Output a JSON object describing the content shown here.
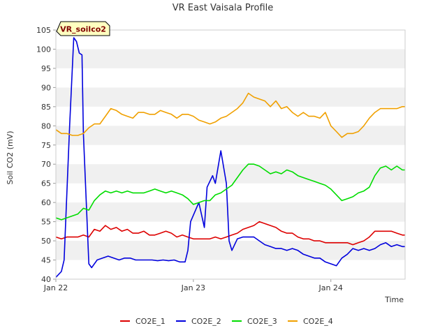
{
  "chart_data": {
    "type": "line",
    "title": "VR East Vaisala Profile",
    "xlabel": "Time",
    "ylabel": "Soil CO2 (mV)",
    "site_label": "VR_soilco2",
    "ylim": [
      40,
      105
    ],
    "yticks": [
      40,
      45,
      50,
      55,
      60,
      65,
      70,
      75,
      80,
      85,
      90,
      95,
      100,
      105
    ],
    "xlim": [
      0,
      2.54
    ],
    "xticks": [
      {
        "value": 0,
        "label": "Jan 22"
      },
      {
        "value": 1,
        "label": "Jan 23"
      },
      {
        "value": 2,
        "label": "Jan 24"
      }
    ],
    "series": [
      {
        "name": "CO2E_1",
        "color": "#dd0000",
        "points": [
          [
            0.0,
            51.0
          ],
          [
            0.04,
            50.5
          ],
          [
            0.08,
            51.0
          ],
          [
            0.12,
            51.0
          ],
          [
            0.16,
            51.0
          ],
          [
            0.2,
            51.5
          ],
          [
            0.24,
            51.0
          ],
          [
            0.28,
            53.0
          ],
          [
            0.32,
            52.5
          ],
          [
            0.36,
            54.0
          ],
          [
            0.4,
            53.0
          ],
          [
            0.44,
            53.5
          ],
          [
            0.48,
            52.5
          ],
          [
            0.52,
            53.0
          ],
          [
            0.56,
            52.0
          ],
          [
            0.6,
            52.0
          ],
          [
            0.64,
            52.5
          ],
          [
            0.68,
            51.5
          ],
          [
            0.72,
            51.5
          ],
          [
            0.76,
            52.0
          ],
          [
            0.8,
            52.5
          ],
          [
            0.84,
            52.0
          ],
          [
            0.88,
            51.0
          ],
          [
            0.92,
            51.5
          ],
          [
            0.96,
            51.0
          ],
          [
            1.0,
            50.5
          ],
          [
            1.04,
            50.5
          ],
          [
            1.08,
            50.5
          ],
          [
            1.12,
            50.5
          ],
          [
            1.16,
            51.0
          ],
          [
            1.2,
            50.5
          ],
          [
            1.24,
            51.0
          ],
          [
            1.28,
            51.5
          ],
          [
            1.32,
            52.0
          ],
          [
            1.36,
            53.0
          ],
          [
            1.4,
            53.5
          ],
          [
            1.44,
            54.0
          ],
          [
            1.48,
            55.0
          ],
          [
            1.52,
            54.5
          ],
          [
            1.56,
            54.0
          ],
          [
            1.6,
            53.5
          ],
          [
            1.64,
            52.5
          ],
          [
            1.68,
            52.0
          ],
          [
            1.72,
            52.0
          ],
          [
            1.76,
            51.0
          ],
          [
            1.8,
            50.5
          ],
          [
            1.84,
            50.5
          ],
          [
            1.88,
            50.0
          ],
          [
            1.92,
            50.0
          ],
          [
            1.96,
            49.5
          ],
          [
            2.0,
            49.5
          ],
          [
            2.04,
            49.5
          ],
          [
            2.08,
            49.5
          ],
          [
            2.12,
            49.5
          ],
          [
            2.16,
            49.0
          ],
          [
            2.2,
            49.5
          ],
          [
            2.24,
            50.0
          ],
          [
            2.28,
            51.0
          ],
          [
            2.32,
            52.5
          ],
          [
            2.36,
            52.5
          ],
          [
            2.4,
            52.5
          ],
          [
            2.44,
            52.5
          ],
          [
            2.48,
            52.0
          ],
          [
            2.52,
            51.5
          ],
          [
            2.54,
            51.5
          ]
        ]
      },
      {
        "name": "CO2E_2",
        "color": "#0000dd",
        "points": [
          [
            0.0,
            40.5
          ],
          [
            0.04,
            42.0
          ],
          [
            0.06,
            45.0
          ],
          [
            0.1,
            80.0
          ],
          [
            0.13,
            103.0
          ],
          [
            0.15,
            102.0
          ],
          [
            0.17,
            99.0
          ],
          [
            0.19,
            98.5
          ],
          [
            0.2,
            78.0
          ],
          [
            0.24,
            44.0
          ],
          [
            0.26,
            43.0
          ],
          [
            0.3,
            45.0
          ],
          [
            0.34,
            45.5
          ],
          [
            0.38,
            46.0
          ],
          [
            0.42,
            45.5
          ],
          [
            0.46,
            45.0
          ],
          [
            0.5,
            45.5
          ],
          [
            0.54,
            45.5
          ],
          [
            0.58,
            45.0
          ],
          [
            0.62,
            45.0
          ],
          [
            0.66,
            45.0
          ],
          [
            0.7,
            45.0
          ],
          [
            0.74,
            44.8
          ],
          [
            0.78,
            45.0
          ],
          [
            0.82,
            44.8
          ],
          [
            0.86,
            45.0
          ],
          [
            0.9,
            44.5
          ],
          [
            0.94,
            44.5
          ],
          [
            0.96,
            47.5
          ],
          [
            0.98,
            55.0
          ],
          [
            1.04,
            60.0
          ],
          [
            1.08,
            53.5
          ],
          [
            1.1,
            64.0
          ],
          [
            1.14,
            67.0
          ],
          [
            1.16,
            65.0
          ],
          [
            1.2,
            73.5
          ],
          [
            1.24,
            65.0
          ],
          [
            1.26,
            50.0
          ],
          [
            1.28,
            47.5
          ],
          [
            1.32,
            50.5
          ],
          [
            1.36,
            51.0
          ],
          [
            1.4,
            51.0
          ],
          [
            1.44,
            51.0
          ],
          [
            1.48,
            50.0
          ],
          [
            1.52,
            49.0
          ],
          [
            1.56,
            48.5
          ],
          [
            1.6,
            48.0
          ],
          [
            1.64,
            48.0
          ],
          [
            1.68,
            47.5
          ],
          [
            1.72,
            48.0
          ],
          [
            1.76,
            47.5
          ],
          [
            1.8,
            46.5
          ],
          [
            1.84,
            46.0
          ],
          [
            1.88,
            45.5
          ],
          [
            1.92,
            45.5
          ],
          [
            1.96,
            44.5
          ],
          [
            2.0,
            44.0
          ],
          [
            2.04,
            43.5
          ],
          [
            2.08,
            45.5
          ],
          [
            2.12,
            46.5
          ],
          [
            2.16,
            48.0
          ],
          [
            2.2,
            47.5
          ],
          [
            2.24,
            48.0
          ],
          [
            2.28,
            47.5
          ],
          [
            2.32,
            48.0
          ],
          [
            2.36,
            49.0
          ],
          [
            2.4,
            49.5
          ],
          [
            2.44,
            48.5
          ],
          [
            2.48,
            49.0
          ],
          [
            2.52,
            48.5
          ],
          [
            2.54,
            48.5
          ]
        ]
      },
      {
        "name": "CO2E_3",
        "color": "#00dd00",
        "points": [
          [
            0.0,
            56.0
          ],
          [
            0.04,
            55.5
          ],
          [
            0.08,
            56.0
          ],
          [
            0.12,
            56.5
          ],
          [
            0.16,
            57.0
          ],
          [
            0.2,
            58.5
          ],
          [
            0.24,
            58.0
          ],
          [
            0.28,
            60.5
          ],
          [
            0.32,
            62.0
          ],
          [
            0.36,
            63.0
          ],
          [
            0.4,
            62.5
          ],
          [
            0.44,
            63.0
          ],
          [
            0.48,
            62.5
          ],
          [
            0.52,
            63.0
          ],
          [
            0.56,
            62.5
          ],
          [
            0.6,
            62.5
          ],
          [
            0.64,
            62.5
          ],
          [
            0.68,
            63.0
          ],
          [
            0.72,
            63.5
          ],
          [
            0.76,
            63.0
          ],
          [
            0.8,
            62.5
          ],
          [
            0.84,
            63.0
          ],
          [
            0.88,
            62.5
          ],
          [
            0.92,
            62.0
          ],
          [
            0.96,
            61.0
          ],
          [
            1.0,
            59.5
          ],
          [
            1.04,
            60.0
          ],
          [
            1.08,
            60.5
          ],
          [
            1.12,
            60.5
          ],
          [
            1.16,
            62.0
          ],
          [
            1.2,
            62.5
          ],
          [
            1.24,
            63.5
          ],
          [
            1.28,
            64.5
          ],
          [
            1.32,
            66.5
          ],
          [
            1.36,
            68.5
          ],
          [
            1.4,
            70.0
          ],
          [
            1.44,
            70.0
          ],
          [
            1.48,
            69.5
          ],
          [
            1.52,
            68.5
          ],
          [
            1.56,
            67.5
          ],
          [
            1.6,
            68.0
          ],
          [
            1.64,
            67.5
          ],
          [
            1.68,
            68.5
          ],
          [
            1.72,
            68.0
          ],
          [
            1.76,
            67.0
          ],
          [
            1.8,
            66.5
          ],
          [
            1.84,
            66.0
          ],
          [
            1.88,
            65.5
          ],
          [
            1.92,
            65.0
          ],
          [
            1.96,
            64.5
          ],
          [
            2.0,
            63.5
          ],
          [
            2.04,
            62.0
          ],
          [
            2.08,
            60.5
          ],
          [
            2.12,
            61.0
          ],
          [
            2.16,
            61.5
          ],
          [
            2.2,
            62.5
          ],
          [
            2.24,
            63.0
          ],
          [
            2.28,
            64.0
          ],
          [
            2.32,
            67.0
          ],
          [
            2.36,
            69.0
          ],
          [
            2.4,
            69.5
          ],
          [
            2.44,
            68.5
          ],
          [
            2.48,
            69.5
          ],
          [
            2.52,
            68.5
          ],
          [
            2.54,
            68.5
          ]
        ]
      },
      {
        "name": "CO2E_4",
        "color": "#f0a000",
        "points": [
          [
            0.0,
            79.0
          ],
          [
            0.04,
            78.0
          ],
          [
            0.08,
            78.0
          ],
          [
            0.12,
            77.5
          ],
          [
            0.16,
            77.5
          ],
          [
            0.2,
            78.0
          ],
          [
            0.24,
            79.5
          ],
          [
            0.28,
            80.5
          ],
          [
            0.32,
            80.5
          ],
          [
            0.36,
            82.5
          ],
          [
            0.4,
            84.5
          ],
          [
            0.44,
            84.0
          ],
          [
            0.48,
            83.0
          ],
          [
            0.52,
            82.5
          ],
          [
            0.56,
            82.0
          ],
          [
            0.6,
            83.5
          ],
          [
            0.64,
            83.5
          ],
          [
            0.68,
            83.0
          ],
          [
            0.72,
            83.0
          ],
          [
            0.76,
            84.0
          ],
          [
            0.8,
            83.5
          ],
          [
            0.84,
            83.0
          ],
          [
            0.88,
            82.0
          ],
          [
            0.92,
            83.0
          ],
          [
            0.96,
            83.0
          ],
          [
            1.0,
            82.5
          ],
          [
            1.04,
            81.5
          ],
          [
            1.08,
            81.0
          ],
          [
            1.12,
            80.5
          ],
          [
            1.16,
            81.0
          ],
          [
            1.2,
            82.0
          ],
          [
            1.24,
            82.5
          ],
          [
            1.28,
            83.5
          ],
          [
            1.32,
            84.5
          ],
          [
            1.36,
            86.0
          ],
          [
            1.4,
            88.5
          ],
          [
            1.44,
            87.5
          ],
          [
            1.48,
            87.0
          ],
          [
            1.52,
            86.5
          ],
          [
            1.56,
            85.0
          ],
          [
            1.6,
            86.5
          ],
          [
            1.64,
            84.5
          ],
          [
            1.68,
            85.0
          ],
          [
            1.72,
            83.5
          ],
          [
            1.76,
            82.5
          ],
          [
            1.8,
            83.5
          ],
          [
            1.84,
            82.5
          ],
          [
            1.88,
            82.5
          ],
          [
            1.92,
            82.0
          ],
          [
            1.96,
            83.5
          ],
          [
            2.0,
            80.0
          ],
          [
            2.04,
            78.5
          ],
          [
            2.08,
            77.0
          ],
          [
            2.12,
            78.0
          ],
          [
            2.16,
            78.0
          ],
          [
            2.2,
            78.5
          ],
          [
            2.24,
            80.0
          ],
          [
            2.28,
            82.0
          ],
          [
            2.32,
            83.5
          ],
          [
            2.36,
            84.5
          ],
          [
            2.4,
            84.5
          ],
          [
            2.44,
            84.5
          ],
          [
            2.48,
            84.5
          ],
          [
            2.52,
            85.0
          ],
          [
            2.54,
            85.0
          ]
        ]
      }
    ],
    "legend_position": "bottom-center",
    "grid": "alternating horizontal bands"
  }
}
